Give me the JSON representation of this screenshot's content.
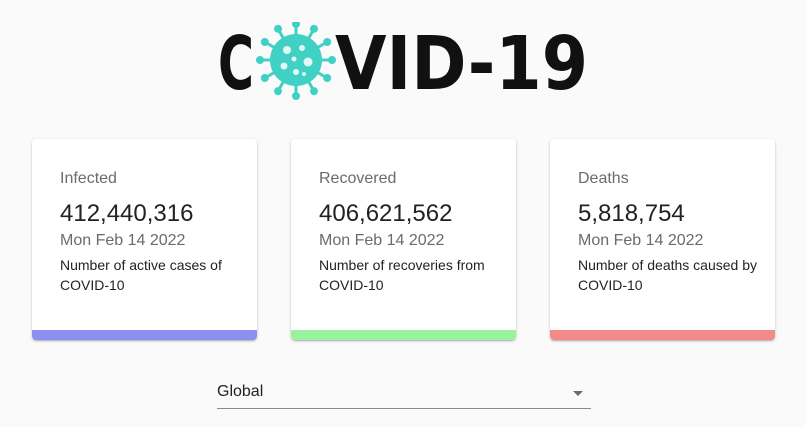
{
  "logo": {
    "text_before": "C",
    "text_after": "VID-19",
    "text_color": "#111111",
    "virus_color": "#3fd1c4",
    "virus_icon": "coronavirus-icon"
  },
  "cards": [
    {
      "label": "Infected",
      "value": "412,440,316",
      "date": "Mon Feb 14 2022",
      "description": "Number of active cases of COVID-10",
      "bar_color": "#8a8ff0"
    },
    {
      "label": "Recovered",
      "value": "406,621,562",
      "date": "Mon Feb 14 2022",
      "description": "Number of recoveries from COVID-10",
      "bar_color": "#9af29c"
    },
    {
      "label": "Deaths",
      "value": "5,818,754",
      "date": "Mon Feb 14 2022",
      "description": "Number of deaths caused by COVID-10",
      "bar_color": "#f28a8a"
    }
  ],
  "country_select": {
    "selected": "Global",
    "icon": "dropdown-arrow-icon"
  }
}
